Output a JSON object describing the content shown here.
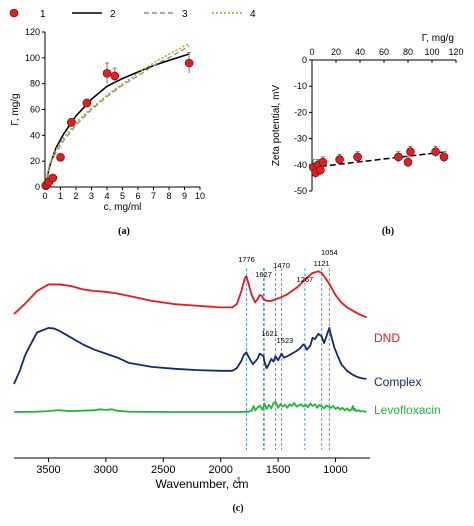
{
  "panels": {
    "a": "(a)",
    "b": "(b)",
    "c": "(c)"
  },
  "colors": {
    "marker": "#e02020",
    "dnd": "#e8191e",
    "complex": "#16296b",
    "levo": "#22b53c",
    "guide": "#4ba3d9"
  },
  "chart_data": [
    {
      "type": "scatter",
      "id": "a",
      "xlabel": "c, mg/ml",
      "ylabel": "Γ, mg/g",
      "xlim": [
        0,
        10
      ],
      "ylim": [
        0,
        120
      ],
      "xticks": [
        "0",
        "1",
        "2",
        "3",
        "4",
        "5",
        "6",
        "7",
        "8",
        "9",
        "10"
      ],
      "yticks": [
        "0",
        "20",
        "40",
        "60",
        "80",
        "100",
        "120"
      ],
      "legend": {
        "position": "top",
        "entries": [
          "1",
          "2",
          "3",
          "4"
        ]
      },
      "points": [
        {
          "x": 0.05,
          "y": 1,
          "err": 0
        },
        {
          "x": 0.12,
          "y": 2,
          "err": 0
        },
        {
          "x": 0.25,
          "y": 4,
          "err": 0
        },
        {
          "x": 0.5,
          "y": 7,
          "err": 0
        },
        {
          "x": 1.0,
          "y": 23,
          "err": 0
        },
        {
          "x": 1.7,
          "y": 50,
          "err": 3
        },
        {
          "x": 2.7,
          "y": 65,
          "err": 3
        },
        {
          "x": 4.0,
          "y": 88,
          "err": 8
        },
        {
          "x": 4.5,
          "y": 86,
          "err": 6
        },
        {
          "x": 9.3,
          "y": 96,
          "err": 8
        }
      ],
      "fits": [
        {
          "name": "2",
          "style": "solid",
          "color": "#000000",
          "x": [
            0,
            0.3,
            0.7,
            1.2,
            2,
            3,
            4,
            5,
            6,
            7,
            8,
            9.3
          ],
          "y": [
            0,
            16,
            30,
            41,
            55,
            68,
            78,
            84,
            89,
            94,
            98,
            103
          ]
        },
        {
          "name": "3",
          "style": "dash",
          "color": "#8a8a8a",
          "x": [
            0,
            0.3,
            0.7,
            1.2,
            2,
            3,
            4,
            5,
            6,
            7,
            8,
            9.3
          ],
          "y": [
            0,
            17,
            27,
            36,
            48,
            60,
            70,
            79,
            86,
            94,
            100,
            109
          ]
        },
        {
          "name": "4",
          "style": "dot",
          "color": "#b8a020",
          "x": [
            0,
            0.3,
            0.7,
            1.2,
            2,
            3,
            4,
            5,
            6,
            7,
            8,
            9.3
          ],
          "y": [
            0,
            18,
            29,
            38,
            50,
            61,
            71,
            80,
            88,
            96,
            103,
            111
          ]
        }
      ]
    },
    {
      "type": "scatter",
      "id": "b",
      "xlabel": "Γ, mg/g",
      "ylabel": "Zeta potential, mV",
      "xlim": [
        0,
        120
      ],
      "ylim": [
        -50,
        0
      ],
      "xticks": [
        "0",
        "20",
        "40",
        "60",
        "80",
        "100",
        "120"
      ],
      "yticks": [
        "0",
        "-10",
        "-20",
        "-30",
        "-40",
        "-50"
      ],
      "points": [
        {
          "x": 1,
          "y": -41,
          "err": 3
        },
        {
          "x": 3,
          "y": -43,
          "err": 2
        },
        {
          "x": 5,
          "y": -40,
          "err": 2
        },
        {
          "x": 7,
          "y": -42,
          "err": 2
        },
        {
          "x": 9,
          "y": -39,
          "err": 2
        },
        {
          "x": 23,
          "y": -38,
          "err": 2
        },
        {
          "x": 38,
          "y": -37,
          "err": 2
        },
        {
          "x": 72,
          "y": -37,
          "err": 2
        },
        {
          "x": 80,
          "y": -39,
          "err": 2
        },
        {
          "x": 82,
          "y": -35,
          "err": 2
        },
        {
          "x": 103,
          "y": -35,
          "err": 2
        },
        {
          "x": 110,
          "y": -37,
          "err": 2
        }
      ],
      "trend": {
        "style": "dash",
        "x": [
          0,
          112
        ],
        "y": [
          -41,
          -35
        ]
      }
    },
    {
      "type": "line",
      "id": "c",
      "xlabel": "Wavenumber, cm",
      "xlabel_sup": "-1",
      "xlim": [
        3800,
        700
      ],
      "xticks": [
        3500,
        3000,
        2500,
        2000,
        1500,
        1000
      ],
      "peaks": [
        "1776",
        "1627",
        "1621",
        "1523",
        "1470",
        "1267",
        "1121",
        "1054"
      ],
      "peak_positions": [
        1776,
        1627,
        1621,
        1523,
        1470,
        1267,
        1121,
        1054
      ],
      "series": [
        {
          "name": "DND",
          "color": "#e8191e",
          "x": [
            3800,
            3700,
            3600,
            3500,
            3400,
            3300,
            3200,
            3100,
            3000,
            2900,
            2800,
            2600,
            2400,
            2200,
            2000,
            1900,
            1860,
            1820,
            1790,
            1776,
            1760,
            1730,
            1700,
            1680,
            1660,
            1640,
            1627,
            1600,
            1560,
            1520,
            1480,
            1420,
            1380,
            1330,
            1280,
            1250,
            1200,
            1150,
            1121,
            1100,
            1060,
            1040,
            1000,
            950,
            900,
            850,
            800,
            750,
            730
          ],
          "y": [
            0.22,
            0.35,
            0.5,
            0.58,
            0.58,
            0.56,
            0.52,
            0.5,
            0.49,
            0.47,
            0.44,
            0.38,
            0.34,
            0.32,
            0.3,
            0.3,
            0.34,
            0.5,
            0.66,
            0.68,
            0.6,
            0.45,
            0.36,
            0.4,
            0.45,
            0.44,
            0.4,
            0.38,
            0.38,
            0.4,
            0.42,
            0.46,
            0.5,
            0.55,
            0.62,
            0.66,
            0.72,
            0.74,
            0.72,
            0.68,
            0.6,
            0.55,
            0.45,
            0.36,
            0.3,
            0.26,
            0.22,
            0.19,
            0.18
          ]
        },
        {
          "name": "Complex",
          "color": "#16296b",
          "x": [
            3800,
            3750,
            3700,
            3600,
            3500,
            3450,
            3400,
            3300,
            3200,
            3100,
            3000,
            2900,
            2800,
            2600,
            2400,
            2200,
            2000,
            1900,
            1860,
            1820,
            1800,
            1776,
            1760,
            1720,
            1680,
            1660,
            1627,
            1621,
            1600,
            1580,
            1560,
            1540,
            1523,
            1500,
            1470,
            1450,
            1420,
            1380,
            1340,
            1310,
            1280,
            1267,
            1250,
            1220,
            1200,
            1180,
            1150,
            1121,
            1100,
            1080,
            1054,
            1040,
            1010,
            980,
            950,
            900,
            850,
            800,
            750,
            730
          ],
          "y": [
            0.0,
            0.2,
            0.45,
            0.78,
            0.85,
            0.84,
            0.8,
            0.7,
            0.6,
            0.52,
            0.46,
            0.4,
            0.32,
            0.26,
            0.23,
            0.21,
            0.2,
            0.2,
            0.24,
            0.35,
            0.44,
            0.48,
            0.42,
            0.3,
            0.38,
            0.46,
            0.42,
            0.35,
            0.24,
            0.3,
            0.38,
            0.34,
            0.42,
            0.36,
            0.46,
            0.4,
            0.42,
            0.46,
            0.5,
            0.54,
            0.6,
            0.58,
            0.52,
            0.58,
            0.7,
            0.68,
            0.76,
            0.72,
            0.62,
            0.72,
            0.85,
            0.74,
            0.55,
            0.42,
            0.3,
            0.2,
            0.14,
            0.1,
            0.08,
            0.08
          ]
        },
        {
          "name": "Levofloxacin",
          "color": "#22b53c",
          "x": [
            3800,
            3600,
            3500,
            3450,
            3400,
            3350,
            3300,
            3100,
            3050,
            3000,
            2950,
            2900,
            2800,
            2400,
            2000,
            1850,
            1760,
            1730,
            1715,
            1700,
            1680,
            1660,
            1640,
            1627,
            1620,
            1600,
            1580,
            1560,
            1540,
            1523,
            1500,
            1480,
            1460,
            1440,
            1420,
            1400,
            1380,
            1360,
            1340,
            1320,
            1300,
            1280,
            1260,
            1240,
            1220,
            1200,
            1180,
            1160,
            1140,
            1120,
            1100,
            1080,
            1060,
            1040,
            1020,
            1000,
            980,
            960,
            940,
            920,
            900,
            880,
            860,
            850,
            840,
            830,
            820,
            800,
            780,
            760,
            740,
            730
          ],
          "y": [
            0.0,
            0.01,
            0.03,
            0.05,
            0.06,
            0.04,
            0.03,
            0.06,
            0.09,
            0.07,
            0.09,
            0.04,
            0.01,
            0.0,
            0.0,
            0.0,
            0.01,
            0.04,
            0.2,
            0.06,
            0.14,
            0.22,
            0.08,
            0.18,
            0.28,
            0.1,
            0.24,
            0.12,
            0.3,
            0.34,
            0.14,
            0.26,
            0.18,
            0.24,
            0.14,
            0.26,
            0.2,
            0.3,
            0.18,
            0.22,
            0.26,
            0.18,
            0.24,
            0.16,
            0.28,
            0.2,
            0.26,
            0.14,
            0.24,
            0.18,
            0.12,
            0.22,
            0.18,
            0.14,
            0.2,
            0.1,
            0.16,
            0.08,
            0.14,
            0.06,
            0.12,
            0.04,
            0.08,
            0.2,
            0.06,
            0.1,
            0.03,
            0.06,
            0.02,
            0.03,
            0.01,
            0.01
          ]
        }
      ]
    }
  ]
}
